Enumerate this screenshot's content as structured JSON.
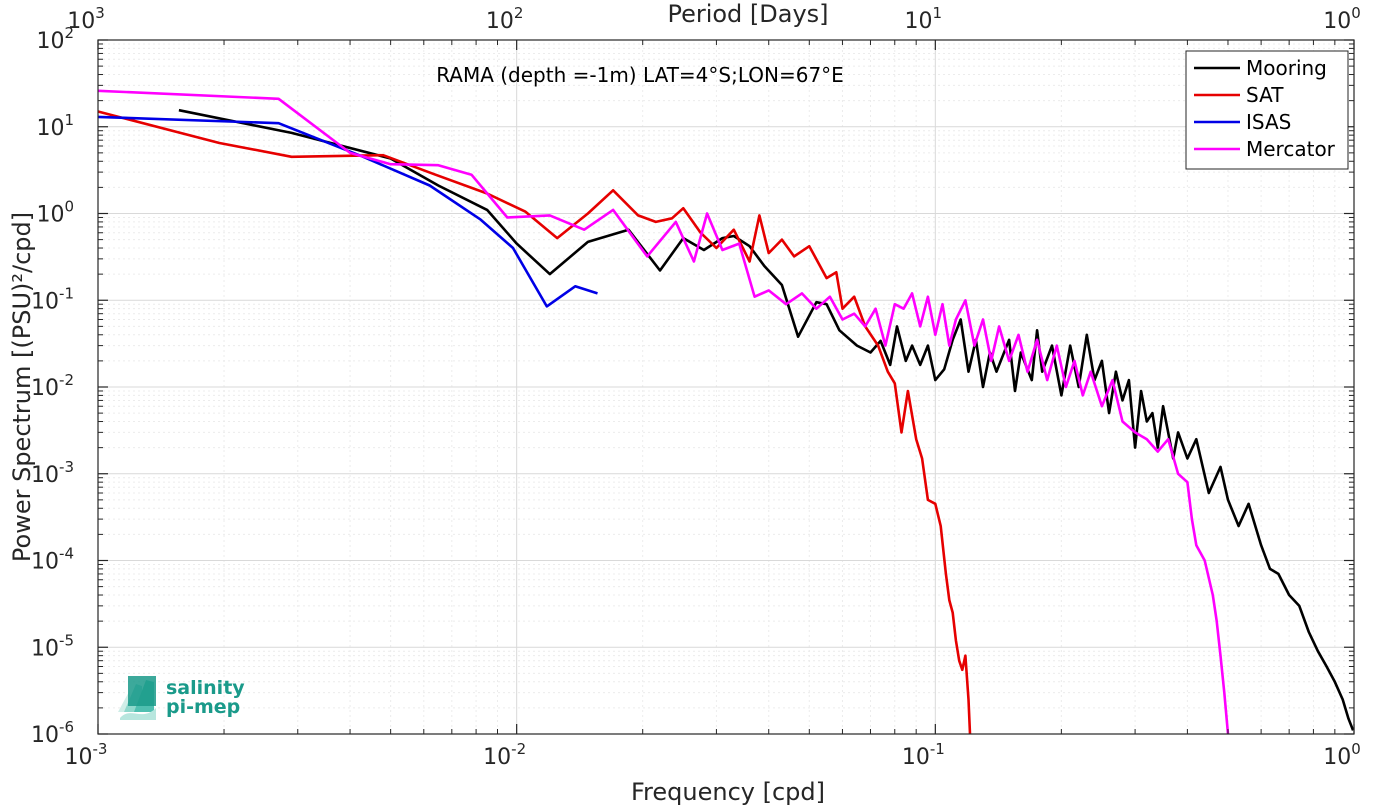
{
  "chart_data": {
    "type": "line",
    "title": "RAMA (depth =-1m) LAT=4°S;LON=67°E",
    "xlabel": "Frequency [cpd]",
    "ylabel": "Power Spectrum [(PSU)²/cpd]",
    "x2label": "Period [Days]",
    "x_scale": "log",
    "y_scale": "log",
    "xlim": [
      0.001,
      1
    ],
    "ylim": [
      1e-06,
      100
    ],
    "x_ticks": [
      {
        "base": "10",
        "exp": "-3",
        "value": 0.001
      },
      {
        "base": "10",
        "exp": "-2",
        "value": 0.01
      },
      {
        "base": "10",
        "exp": "-1",
        "value": 0.1
      },
      {
        "base": "10",
        "exp": "0",
        "value": 1
      }
    ],
    "y_ticks": [
      {
        "base": "10",
        "exp": "-6",
        "value": 1e-06
      },
      {
        "base": "10",
        "exp": "-5",
        "value": 1e-05
      },
      {
        "base": "10",
        "exp": "-4",
        "value": 0.0001
      },
      {
        "base": "10",
        "exp": "-3",
        "value": 0.001
      },
      {
        "base": "10",
        "exp": "-2",
        "value": 0.01
      },
      {
        "base": "10",
        "exp": "-1",
        "value": 0.1
      },
      {
        "base": "10",
        "exp": "0",
        "value": 1
      },
      {
        "base": "10",
        "exp": "1",
        "value": 10
      },
      {
        "base": "10",
        "exp": "2",
        "value": 100
      }
    ],
    "x2_ticks": [
      {
        "base": "10",
        "exp": "3",
        "value": 1000
      },
      {
        "base": "10",
        "exp": "2",
        "value": 100
      },
      {
        "base": "10",
        "exp": "1",
        "value": 10
      },
      {
        "base": "10",
        "exp": "0",
        "value": 1
      }
    ],
    "grid": true,
    "legend_position": "top-right",
    "series": [
      {
        "name": "Mooring",
        "color": "#000000",
        "points": [
          [
            0.00156,
            15.5
          ],
          [
            0.0029,
            8.5
          ],
          [
            0.005,
            4.3
          ],
          [
            0.0065,
            2.1
          ],
          [
            0.0085,
            1.1
          ],
          [
            0.01,
            0.45
          ],
          [
            0.012,
            0.2
          ],
          [
            0.0148,
            0.47
          ],
          [
            0.0185,
            0.65
          ],
          [
            0.022,
            0.22
          ],
          [
            0.025,
            0.52
          ],
          [
            0.028,
            0.38
          ],
          [
            0.031,
            0.52
          ],
          [
            0.033,
            0.55
          ],
          [
            0.036,
            0.42
          ],
          [
            0.039,
            0.25
          ],
          [
            0.043,
            0.15
          ],
          [
            0.047,
            0.038
          ],
          [
            0.052,
            0.095
          ],
          [
            0.055,
            0.09
          ],
          [
            0.059,
            0.045
          ],
          [
            0.065,
            0.03
          ],
          [
            0.07,
            0.025
          ],
          [
            0.074,
            0.034
          ],
          [
            0.078,
            0.018
          ],
          [
            0.081,
            0.05
          ],
          [
            0.085,
            0.02
          ],
          [
            0.088,
            0.03
          ],
          [
            0.092,
            0.018
          ],
          [
            0.096,
            0.03
          ],
          [
            0.1,
            0.012
          ],
          [
            0.105,
            0.016
          ],
          [
            0.11,
            0.035
          ],
          [
            0.115,
            0.06
          ],
          [
            0.12,
            0.015
          ],
          [
            0.125,
            0.035
          ],
          [
            0.13,
            0.01
          ],
          [
            0.135,
            0.025
          ],
          [
            0.14,
            0.015
          ],
          [
            0.15,
            0.035
          ],
          [
            0.155,
            0.009
          ],
          [
            0.16,
            0.025
          ],
          [
            0.17,
            0.012
          ],
          [
            0.175,
            0.045
          ],
          [
            0.18,
            0.015
          ],
          [
            0.19,
            0.03
          ],
          [
            0.2,
            0.008
          ],
          [
            0.21,
            0.03
          ],
          [
            0.22,
            0.01
          ],
          [
            0.23,
            0.04
          ],
          [
            0.24,
            0.012
          ],
          [
            0.25,
            0.02
          ],
          [
            0.26,
            0.005
          ],
          [
            0.27,
            0.015
          ],
          [
            0.28,
            0.007
          ],
          [
            0.29,
            0.012
          ],
          [
            0.3,
            0.002
          ],
          [
            0.31,
            0.009
          ],
          [
            0.32,
            0.004
          ],
          [
            0.33,
            0.005
          ],
          [
            0.34,
            0.002
          ],
          [
            0.35,
            0.006
          ],
          [
            0.37,
            0.0015
          ],
          [
            0.38,
            0.003
          ],
          [
            0.4,
            0.0015
          ],
          [
            0.42,
            0.0025
          ],
          [
            0.45,
            0.0006
          ],
          [
            0.48,
            0.0012
          ],
          [
            0.5,
            0.0005
          ],
          [
            0.53,
            0.00025
          ],
          [
            0.56,
            0.00045
          ],
          [
            0.6,
            0.00015
          ],
          [
            0.63,
            8e-05
          ],
          [
            0.66,
            7e-05
          ],
          [
            0.7,
            4e-05
          ],
          [
            0.74,
            3e-05
          ],
          [
            0.78,
            1.5e-05
          ],
          [
            0.82,
            9e-06
          ],
          [
            0.86,
            6e-06
          ],
          [
            0.9,
            4e-06
          ],
          [
            0.94,
            2.5e-06
          ],
          [
            0.97,
            1.5e-06
          ],
          [
            0.995,
            1.1e-06
          ]
        ]
      },
      {
        "name": "SAT",
        "color": "#e60000",
        "points": [
          [
            0.001,
            15
          ],
          [
            0.00195,
            6.5
          ],
          [
            0.0029,
            4.5
          ],
          [
            0.0048,
            4.7
          ],
          [
            0.0064,
            2.8
          ],
          [
            0.0085,
            1.7
          ],
          [
            0.0105,
            1.05
          ],
          [
            0.0125,
            0.52
          ],
          [
            0.0148,
            1.0
          ],
          [
            0.017,
            1.85
          ],
          [
            0.0195,
            0.95
          ],
          [
            0.0215,
            0.8
          ],
          [
            0.0235,
            0.88
          ],
          [
            0.025,
            1.15
          ],
          [
            0.0275,
            0.6
          ],
          [
            0.03,
            0.4
          ],
          [
            0.033,
            0.65
          ],
          [
            0.036,
            0.28
          ],
          [
            0.038,
            0.95
          ],
          [
            0.04,
            0.35
          ],
          [
            0.043,
            0.5
          ],
          [
            0.046,
            0.32
          ],
          [
            0.05,
            0.42
          ],
          [
            0.055,
            0.18
          ],
          [
            0.058,
            0.21
          ],
          [
            0.06,
            0.08
          ],
          [
            0.064,
            0.11
          ],
          [
            0.068,
            0.05
          ],
          [
            0.073,
            0.03
          ],
          [
            0.077,
            0.015
          ],
          [
            0.08,
            0.011
          ],
          [
            0.083,
            0.003
          ],
          [
            0.086,
            0.009
          ],
          [
            0.09,
            0.0025
          ],
          [
            0.093,
            0.0015
          ],
          [
            0.096,
            0.0005
          ],
          [
            0.1,
            0.00045
          ],
          [
            0.103,
            0.00025
          ],
          [
            0.106,
            7e-05
          ],
          [
            0.108,
            3.5e-05
          ],
          [
            0.11,
            2.5e-05
          ],
          [
            0.112,
            1.2e-05
          ],
          [
            0.114,
            7e-06
          ],
          [
            0.116,
            5.5e-06
          ],
          [
            0.118,
            8e-06
          ],
          [
            0.12,
            2.5e-06
          ],
          [
            0.121,
            1e-06
          ]
        ]
      },
      {
        "name": "ISAS",
        "color": "#0000e6",
        "points": [
          [
            0.001,
            13
          ],
          [
            0.0027,
            11
          ],
          [
            0.0043,
            4.5
          ],
          [
            0.0062,
            2.1
          ],
          [
            0.0082,
            0.85
          ],
          [
            0.0098,
            0.4
          ],
          [
            0.0118,
            0.085
          ],
          [
            0.0138,
            0.145
          ],
          [
            0.0156,
            0.12
          ]
        ]
      },
      {
        "name": "Mercator",
        "color": "#ff00ff",
        "points": [
          [
            0.001,
            26
          ],
          [
            0.0027,
            21
          ],
          [
            0.004,
            5
          ],
          [
            0.005,
            3.7
          ],
          [
            0.0065,
            3.6
          ],
          [
            0.0078,
            2.8
          ],
          [
            0.0095,
            0.9
          ],
          [
            0.012,
            0.95
          ],
          [
            0.0145,
            0.65
          ],
          [
            0.017,
            1.1
          ],
          [
            0.0205,
            0.32
          ],
          [
            0.024,
            0.8
          ],
          [
            0.0265,
            0.28
          ],
          [
            0.0285,
            1.0
          ],
          [
            0.031,
            0.38
          ],
          [
            0.034,
            0.45
          ],
          [
            0.037,
            0.11
          ],
          [
            0.04,
            0.13
          ],
          [
            0.044,
            0.09
          ],
          [
            0.048,
            0.12
          ],
          [
            0.052,
            0.08
          ],
          [
            0.056,
            0.11
          ],
          [
            0.06,
            0.06
          ],
          [
            0.064,
            0.07
          ],
          [
            0.068,
            0.05
          ],
          [
            0.072,
            0.08
          ],
          [
            0.076,
            0.03
          ],
          [
            0.08,
            0.09
          ],
          [
            0.084,
            0.08
          ],
          [
            0.088,
            0.12
          ],
          [
            0.092,
            0.05
          ],
          [
            0.096,
            0.11
          ],
          [
            0.1,
            0.04
          ],
          [
            0.104,
            0.09
          ],
          [
            0.108,
            0.03
          ],
          [
            0.112,
            0.06
          ],
          [
            0.118,
            0.1
          ],
          [
            0.124,
            0.03
          ],
          [
            0.13,
            0.06
          ],
          [
            0.136,
            0.02
          ],
          [
            0.142,
            0.05
          ],
          [
            0.15,
            0.02
          ],
          [
            0.158,
            0.04
          ],
          [
            0.166,
            0.015
          ],
          [
            0.175,
            0.035
          ],
          [
            0.185,
            0.012
          ],
          [
            0.195,
            0.03
          ],
          [
            0.205,
            0.01
          ],
          [
            0.215,
            0.02
          ],
          [
            0.225,
            0.008
          ],
          [
            0.235,
            0.015
          ],
          [
            0.25,
            0.006
          ],
          [
            0.265,
            0.012
          ],
          [
            0.28,
            0.004
          ],
          [
            0.3,
            0.003
          ],
          [
            0.32,
            0.0025
          ],
          [
            0.34,
            0.0018
          ],
          [
            0.36,
            0.0025
          ],
          [
            0.38,
            0.001
          ],
          [
            0.4,
            0.0008
          ],
          [
            0.41,
            0.0003
          ],
          [
            0.42,
            0.00015
          ],
          [
            0.44,
            0.0001
          ],
          [
            0.46,
            4e-05
          ],
          [
            0.47,
            2e-05
          ],
          [
            0.48,
            8e-06
          ],
          [
            0.49,
            3e-06
          ],
          [
            0.5,
            1e-06
          ]
        ]
      }
    ]
  }
}
